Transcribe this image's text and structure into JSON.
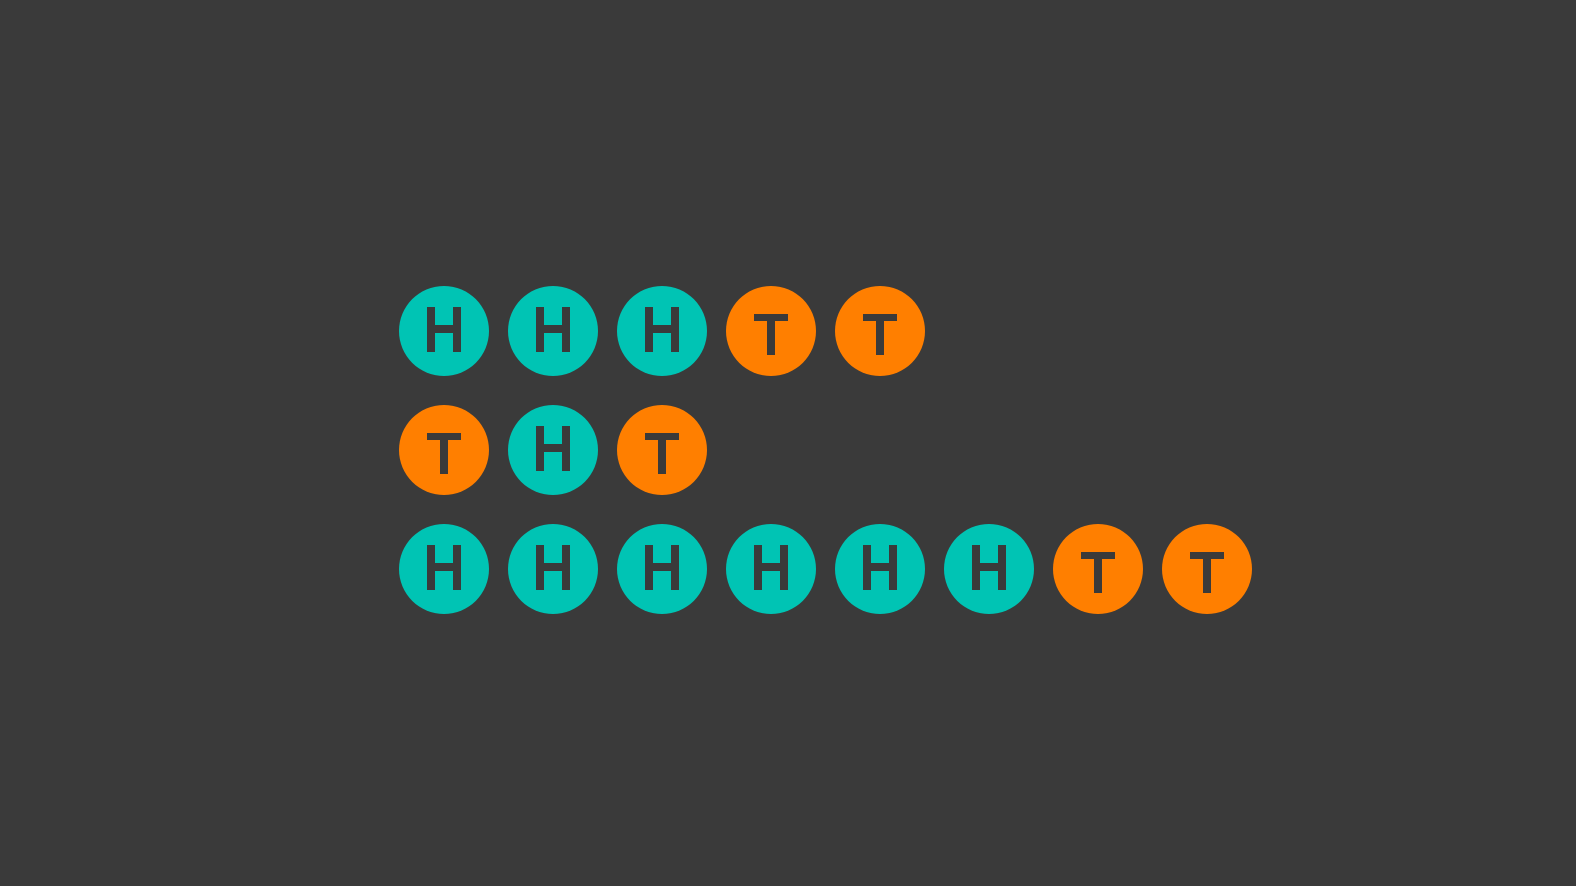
{
  "colors": {
    "background": "#3a3a3a",
    "heads": "#00c4b4",
    "tails": "#ff7f00",
    "glyph": "#3a3a3a"
  },
  "coin_sequences": [
    [
      "H",
      "H",
      "H",
      "T",
      "T"
    ],
    [
      "T",
      "H",
      "T"
    ],
    [
      "H",
      "H",
      "H",
      "H",
      "H",
      "H",
      "T",
      "T"
    ]
  ]
}
